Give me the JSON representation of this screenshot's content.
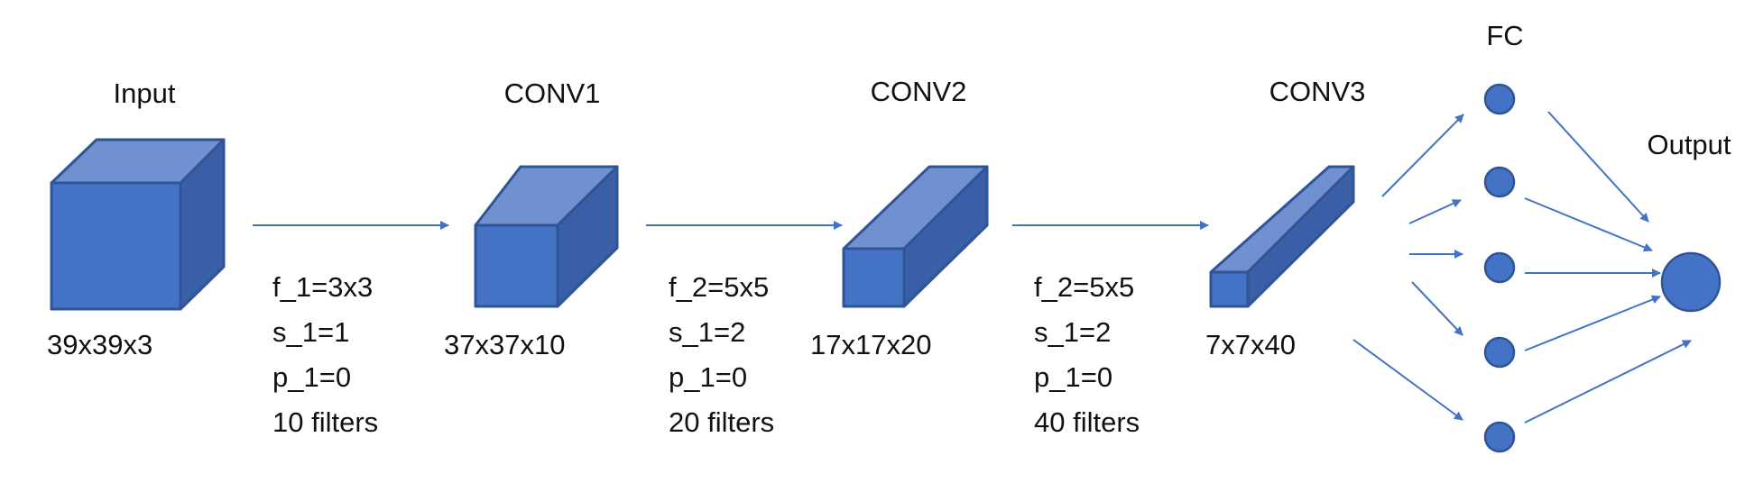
{
  "colors": {
    "accent": "#4472c4",
    "outline": "#2f5597",
    "top_face": "#7090d0",
    "side_face": "#3a5fa6"
  },
  "layers": [
    {
      "title": "Input",
      "shape": "39x39x3"
    },
    {
      "title": "CONV1",
      "shape": "37x37x10"
    },
    {
      "title": "CONV2",
      "shape": "17x17x20"
    },
    {
      "title": "CONV3",
      "shape": "7x7x40"
    }
  ],
  "transitions": [
    {
      "filter": "f_1=3x3",
      "stride": "s_1=1",
      "padding": "p_1=0",
      "count": "10 filters"
    },
    {
      "filter": "f_2=5x5",
      "stride": "s_1=2",
      "padding": "p_1=0",
      "count": "20 filters"
    },
    {
      "filter": "f_2=5x5",
      "stride": "s_1=2",
      "padding": "p_1=0",
      "count": "40 filters"
    }
  ],
  "fc": {
    "title": "FC",
    "node_count": 5
  },
  "output": {
    "title": "Output"
  }
}
